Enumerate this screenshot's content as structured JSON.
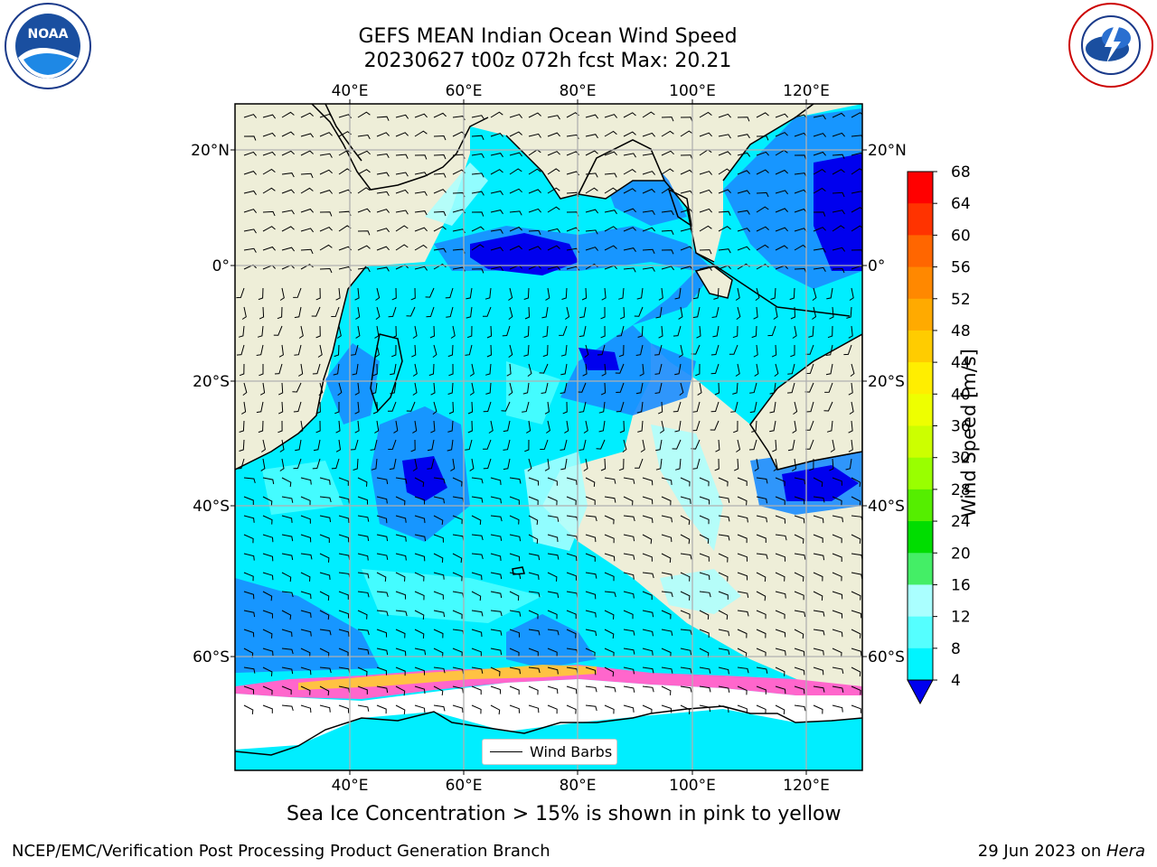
{
  "title": {
    "line1": "GEFS MEAN Indian Ocean Wind Speed",
    "line2": "20230627 t00z 072h fcst   Max: 20.21"
  },
  "logos": {
    "left": {
      "name": "noaa-logo",
      "text": "NOAA"
    },
    "right": {
      "name": "nws-logo",
      "text": "NATIONAL WEATHER SERVICE"
    }
  },
  "map": {
    "top_lon_labels": [
      "40°E",
      "60°E",
      "80°E",
      "100°E",
      "120°E"
    ],
    "bottom_lon_labels": [
      "40°E",
      "60°E",
      "80°E",
      "100°E",
      "120°E"
    ],
    "left_lat_labels": [
      "20°N",
      "0°",
      "20°S",
      "40°S",
      "60°S"
    ],
    "right_lat_labels": [
      "20°N",
      "0°",
      "20°S",
      "40°S",
      "60°S"
    ],
    "legend_label": "Wind Barbs"
  },
  "colorbar": {
    "label": "Wind Speed [m/s]",
    "ticks": [
      "68",
      "64",
      "60",
      "56",
      "52",
      "48",
      "44",
      "40",
      "36",
      "32",
      "28",
      "24",
      "20",
      "16",
      "12",
      "8",
      "4"
    ],
    "colors": [
      "#ff0000",
      "#ff3300",
      "#ff6600",
      "#ff8800",
      "#ffaa00",
      "#ffcc00",
      "#ffee00",
      "#eeff00",
      "#ccff00",
      "#99ff00",
      "#55ee00",
      "#00dd00",
      "#44ee66",
      "#aaffff",
      "#55ffff",
      "#00f5ff",
      "#1a8cff",
      "#0000ee"
    ]
  },
  "caption": "Sea Ice Concentration > 15% is shown in pink to yellow",
  "footer": {
    "left": "NCEP/EMC/Verification Post Processing Product Generation Branch",
    "right_prefix": "29 Jun 2023 on ",
    "right_host": "Hera"
  }
}
